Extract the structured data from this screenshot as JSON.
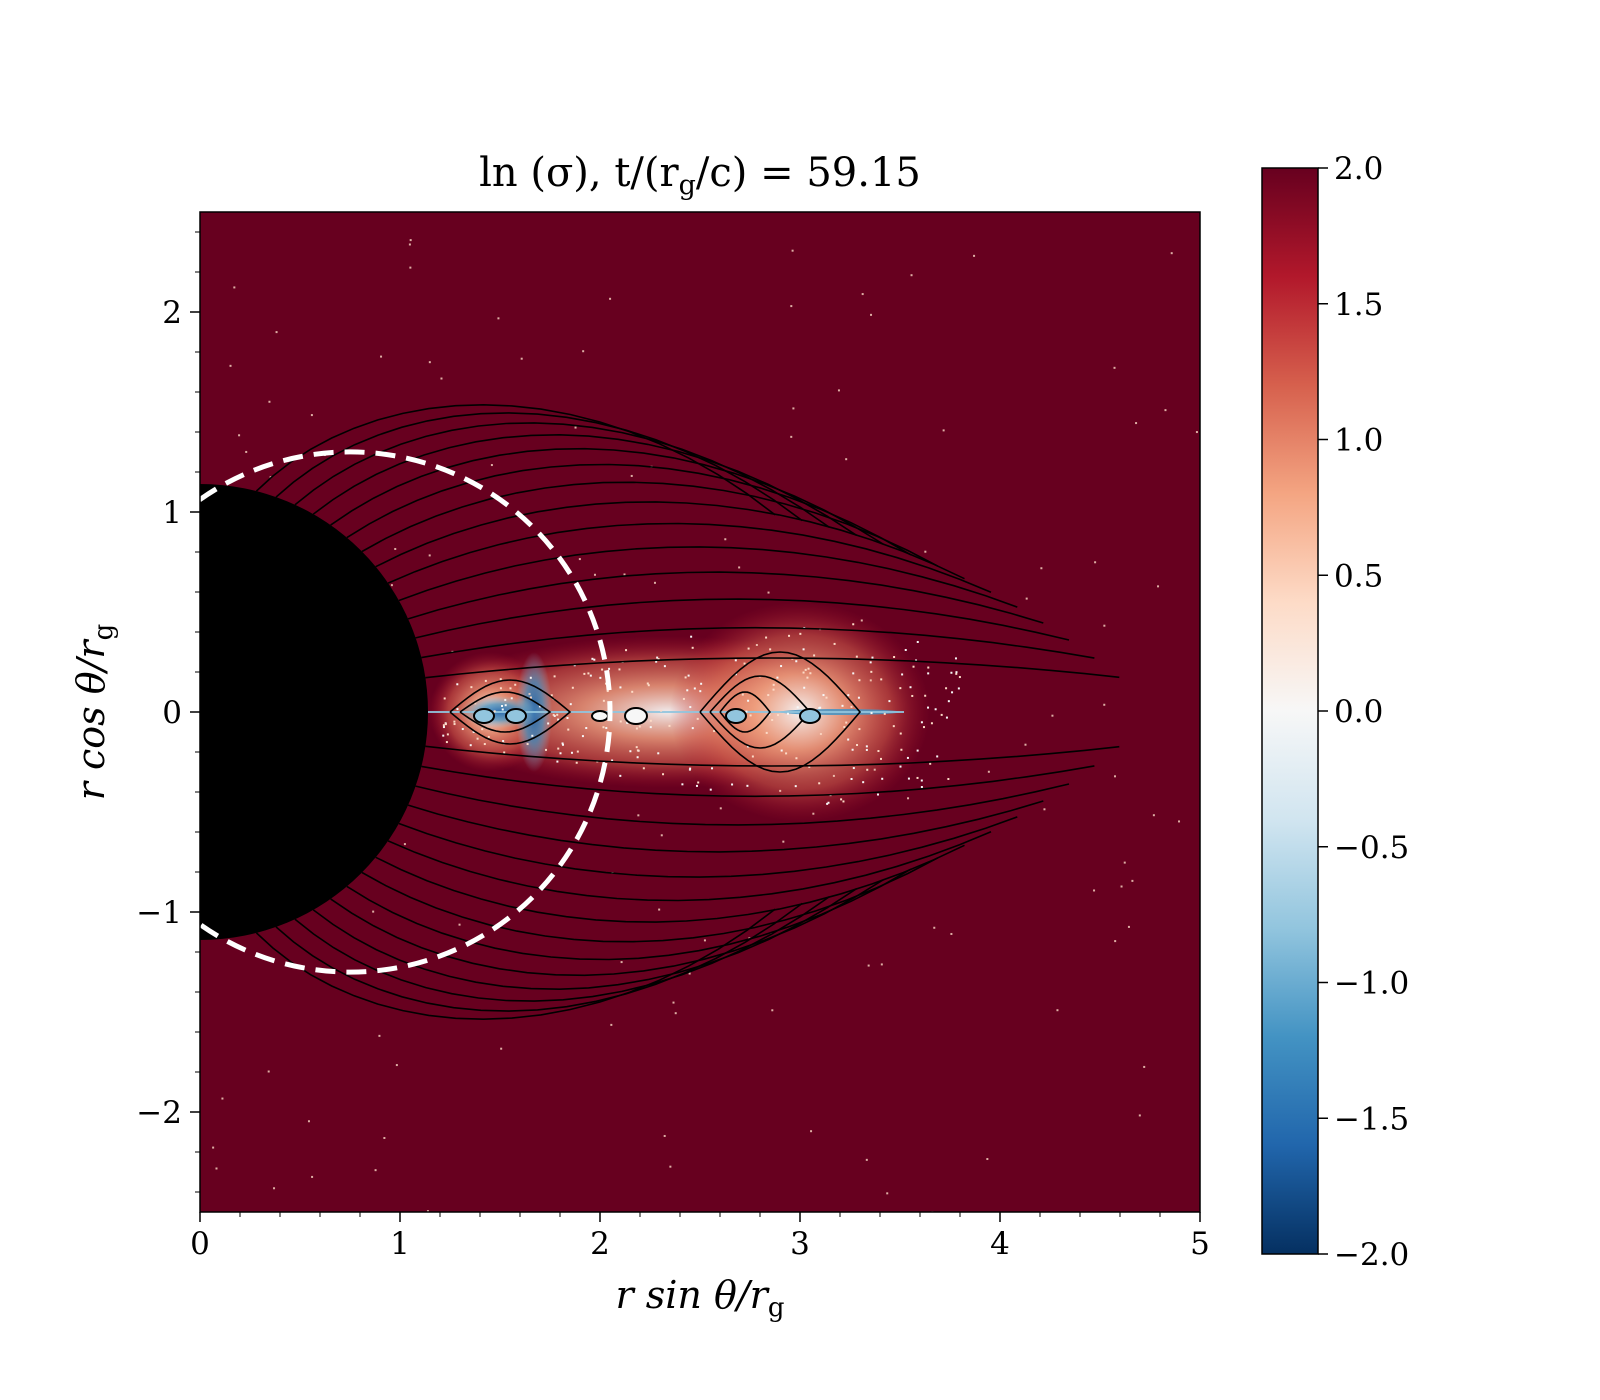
{
  "chart_data": {
    "type": "heatmap",
    "title": "ln (σ), t/(r_g/c) = 59.15",
    "title_parts": {
      "lhs": "ln (σ), t/(r",
      "sub1": "g",
      "mid": "/c) = 59.15"
    },
    "xlabel": {
      "main": "r sin θ/r",
      "sub": "g"
    },
    "ylabel": {
      "main": "r cos θ/r",
      "sub": "g"
    },
    "xlim": [
      0,
      5
    ],
    "ylim": [
      -2.5,
      2.5
    ],
    "x_ticks": [
      0,
      1,
      2,
      3,
      4,
      5
    ],
    "x_tick_labels": [
      "0",
      "1",
      "2",
      "3",
      "4",
      "5"
    ],
    "y_ticks": [
      -2,
      -1,
      0,
      1,
      2
    ],
    "y_tick_labels": [
      "−2",
      "−1",
      "0",
      "1",
      "2"
    ],
    "colorbar": {
      "range": [
        -2.0,
        2.0
      ],
      "colormap": "RdBu_r",
      "ticks": [
        2.0,
        1.5,
        1.0,
        0.5,
        0.0,
        -0.5,
        -1.0,
        -1.5,
        -2.0
      ],
      "tick_labels": [
        "2.0",
        "1.5",
        "1.0",
        "0.5",
        "0.0",
        "−0.5",
        "−1.0",
        "−1.5",
        "−2.0"
      ]
    },
    "horizon_radius": 1.14,
    "ergosphere_radius": 1.3,
    "ergosphere_center_x": 0.75,
    "current_sheet_end_x": 3.55,
    "plasmoids_x": [
      1.42,
      1.58,
      2.0,
      2.18,
      2.68,
      3.05
    ],
    "grid": false,
    "legend": "none",
    "colors": {
      "saturated_high": "#67001f",
      "low": "#2166ac",
      "neutral": "#f7f7f7",
      "horizon": "#000000",
      "ergosphere": "#ffffff",
      "field_lines": "#000000"
    }
  }
}
